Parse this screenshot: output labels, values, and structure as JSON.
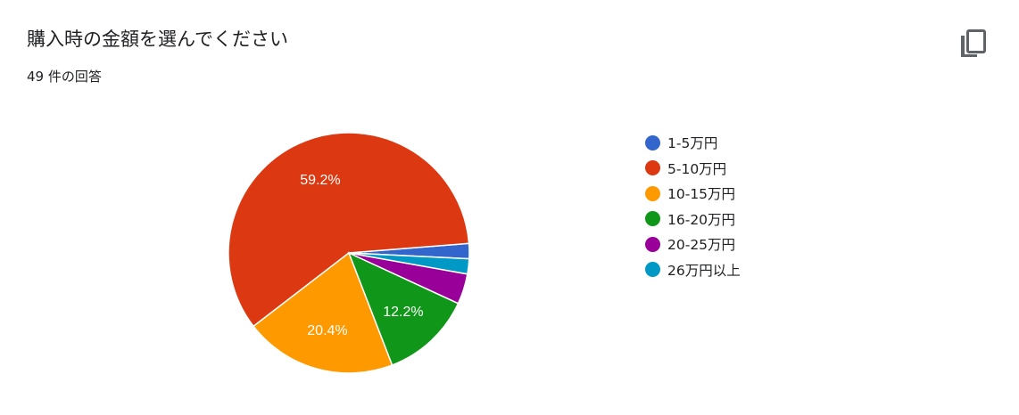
{
  "question": {
    "title": "購入時の金額を選んでください",
    "response_count": "49 件の回答"
  },
  "copy_button": {
    "icon": "copy-icon"
  },
  "chart_data": {
    "type": "pie",
    "categories": [
      "1-5万円",
      "5-10万円",
      "10-15万円",
      "16-20万円",
      "20-25万円",
      "26万円以上"
    ],
    "values": [
      1,
      29,
      10,
      6,
      2,
      1
    ],
    "percent_labels": [
      "",
      "59.2%",
      "20.4%",
      "12.2%",
      "",
      ""
    ],
    "colors": [
      "#3366cc",
      "#dc3912",
      "#ff9900",
      "#109618",
      "#990099",
      "#0099c6"
    ],
    "legend_position": "right"
  }
}
